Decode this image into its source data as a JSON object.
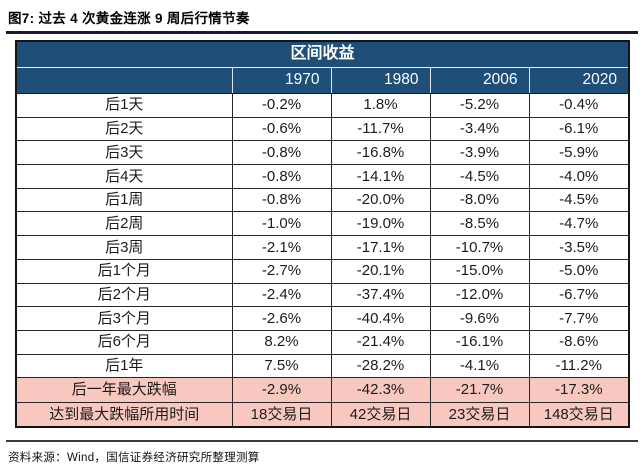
{
  "figure": {
    "title": "图7: 过去 4 次黄金连涨 9 周后行情节奏",
    "source": "资料来源：Wind，国信证券经济研究所整理测算"
  },
  "colors": {
    "header_bg": "#1f4e79",
    "highlight_bg": "#f8c8c0",
    "title_rule": "#1c1b33",
    "grid_line": "#262626"
  },
  "chart_data": {
    "type": "table",
    "title": "区间收益",
    "columns": [
      "1970",
      "1980",
      "2006",
      "2020"
    ],
    "rows": [
      {
        "label": "后1天",
        "values": [
          "-0.2%",
          "1.8%",
          "-5.2%",
          "-0.4%"
        ]
      },
      {
        "label": "后2天",
        "values": [
          "-0.6%",
          "-11.7%",
          "-3.4%",
          "-6.1%"
        ]
      },
      {
        "label": "后3天",
        "values": [
          "-0.8%",
          "-16.8%",
          "-3.9%",
          "-5.9%"
        ]
      },
      {
        "label": "后4天",
        "values": [
          "-0.8%",
          "-14.1%",
          "-4.5%",
          "-4.0%"
        ]
      },
      {
        "label": "后1周",
        "values": [
          "-0.8%",
          "-20.0%",
          "-8.0%",
          "-4.5%"
        ]
      },
      {
        "label": "后2周",
        "values": [
          "-1.0%",
          "-19.0%",
          "-8.5%",
          "-4.7%"
        ]
      },
      {
        "label": "后3周",
        "values": [
          "-2.1%",
          "-17.1%",
          "-10.7%",
          "-3.5%"
        ]
      },
      {
        "label": "后1个月",
        "values": [
          "-2.7%",
          "-20.1%",
          "-15.0%",
          "-5.0%"
        ]
      },
      {
        "label": "后2个月",
        "values": [
          "-2.4%",
          "-37.4%",
          "-12.0%",
          "-6.7%"
        ]
      },
      {
        "label": "后3个月",
        "values": [
          "-2.6%",
          "-40.4%",
          "-9.6%",
          "-7.7%"
        ]
      },
      {
        "label": "后6个月",
        "values": [
          "8.2%",
          "-21.4%",
          "-16.1%",
          "-8.6%"
        ]
      },
      {
        "label": "后1年",
        "values": [
          "7.5%",
          "-28.2%",
          "-4.1%",
          "-11.2%"
        ]
      }
    ],
    "highlight_rows": [
      {
        "label": "后一年最大跌幅",
        "values": [
          "-2.9%",
          "-42.3%",
          "-21.7%",
          "-17.3%"
        ]
      },
      {
        "label": "达到最大跌幅所用时间",
        "values": [
          "18交易日",
          "42交易日",
          "23交易日",
          "148交易日"
        ]
      }
    ]
  }
}
